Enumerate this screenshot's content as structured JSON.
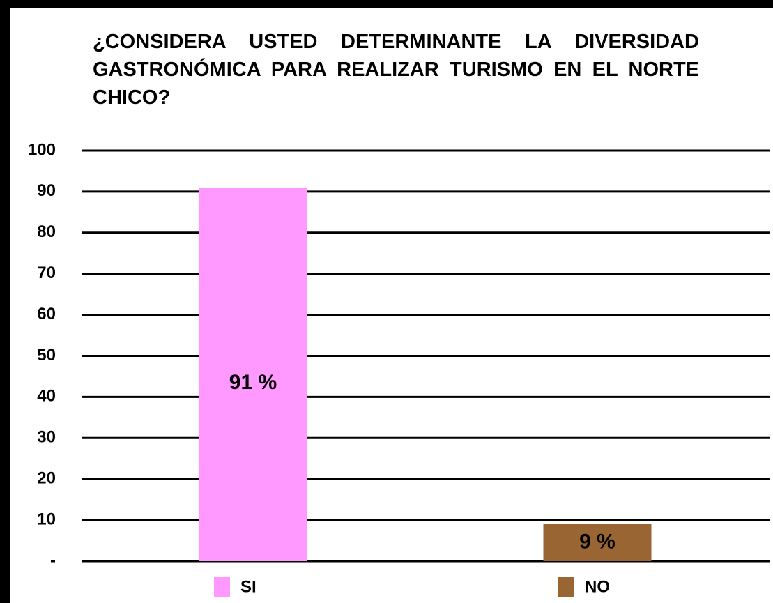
{
  "chart_data": {
    "type": "bar",
    "title": "¿CONSIDERA USTED DETERMINANTE LA DIVERSIDAD GASTRONÓMICA PARA REALIZAR TURISMO EN EL NORTE CHICO?",
    "categories": [
      "SI",
      "NO"
    ],
    "values": [
      91,
      9
    ],
    "value_labels": [
      "91 %",
      "9 %"
    ],
    "colors": [
      "#ff99ff",
      "#996633"
    ],
    "ylim": [
      0,
      100
    ],
    "yticks": [
      {
        "value": 0,
        "label": "-"
      },
      10,
      20,
      30,
      40,
      50,
      60,
      70,
      80,
      90,
      100
    ],
    "grid": true,
    "legend": "bottom"
  }
}
